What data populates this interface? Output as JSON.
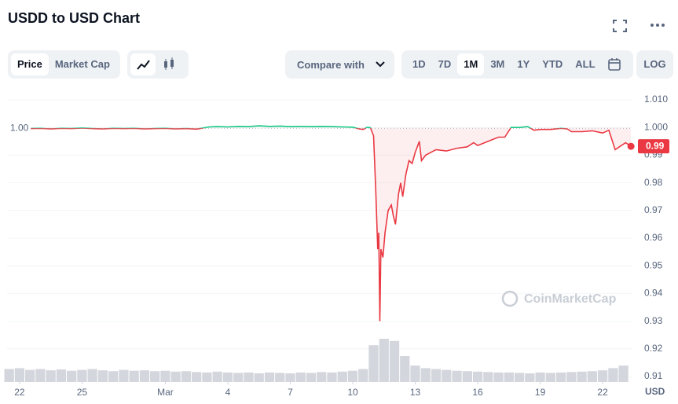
{
  "header": {
    "title": "USDD to USD Chart",
    "tabs": [
      "Price",
      "Market Cap"
    ],
    "compare": "Compare with",
    "ranges": [
      "1D",
      "7D",
      "1M",
      "3M",
      "1Y",
      "YTD",
      "ALL"
    ],
    "log": "LOG"
  },
  "chart_data": {
    "type": "line",
    "watermark": "CoinMarketCap",
    "y_unit": "USD",
    "xlim": [
      -0.6,
      29.43
    ],
    "xticks": [
      {
        "value": 0,
        "label": "22"
      },
      {
        "value": 3,
        "label": "25"
      },
      {
        "value": 7,
        "label": "Mar"
      },
      {
        "value": 10,
        "label": "4"
      },
      {
        "value": 13,
        "label": "7"
      },
      {
        "value": 16,
        "label": "10"
      },
      {
        "value": 19,
        "label": "13"
      },
      {
        "value": 22,
        "label": "16"
      },
      {
        "value": 25,
        "label": "19"
      },
      {
        "value": 28,
        "label": "22"
      }
    ],
    "ylim": [
      0.91,
      1.01
    ],
    "yticks": [
      {
        "value": 1.01,
        "label": "1.010"
      },
      {
        "value": 1.0,
        "label": "1.000"
      },
      0.99,
      0.98,
      0.97,
      0.96,
      0.95,
      0.94,
      0.93,
      0.92,
      0.91
    ],
    "reference": {
      "value": 0.9997,
      "label": "1.00"
    },
    "grid": true,
    "up_color": "#16c784",
    "down_color": "#ea3943",
    "series": [
      {
        "x": [
          -0.55,
          0,
          0.5,
          1,
          1.5,
          2,
          2.5,
          3,
          3.5,
          4,
          4.5,
          5,
          5.5,
          6,
          6.5,
          7,
          7.5,
          8,
          8.5,
          9.1,
          9.5,
          10,
          10.5,
          11,
          11.5,
          12,
          12.5,
          13,
          13.5,
          14,
          14.5,
          15,
          15.5,
          16,
          16.3,
          16.5,
          16.7,
          16.85,
          17.0,
          17.1,
          17.2,
          17.25,
          17.3,
          17.35,
          17.45,
          17.55,
          17.7,
          17.85,
          17.95,
          18.05,
          18.2,
          18.3,
          18.4,
          18.55,
          18.7,
          18.85,
          19.0,
          19.2,
          19.3,
          19.5,
          20,
          20.5,
          21,
          21.5,
          21.8,
          22,
          22.5,
          23,
          23.3,
          23.6,
          24,
          24.4,
          24.7,
          25,
          25.5,
          26,
          26.3,
          26.5,
          27,
          27.5,
          28,
          28.3,
          28.6,
          28.9,
          29.1,
          29.36
        ],
        "values": [
          0.9997,
          0.9998,
          0.9996,
          0.9997,
          0.9995,
          0.9997,
          0.9996,
          0.9998,
          0.9996,
          0.9995,
          0.9997,
          0.9996,
          0.9997,
          0.9995,
          0.9996,
          0.9997,
          0.9995,
          0.9996,
          0.9994,
          1.0002,
          1.0003,
          1.0002,
          1.0004,
          1.0003,
          1.0006,
          1.0004,
          1.0005,
          1.0003,
          1.0004,
          1.0003,
          1.0004,
          1.0003,
          1.0002,
          1.0001,
          0.9995,
          0.9993,
          1.0001,
          0.9999,
          0.997,
          0.978,
          0.956,
          0.962,
          0.93,
          0.956,
          0.953,
          0.962,
          0.97,
          0.972,
          0.968,
          0.965,
          0.976,
          0.98,
          0.975,
          0.983,
          0.988,
          0.987,
          0.991,
          0.995,
          0.988,
          0.99,
          0.992,
          0.9915,
          0.9925,
          0.993,
          0.9945,
          0.9935,
          0.995,
          0.9965,
          0.9965,
          1.0,
          1.0,
          1.0003,
          0.999,
          0.9993,
          0.9993,
          0.9997,
          0.9995,
          0.9985,
          0.9985,
          0.9988,
          0.998,
          0.999,
          0.992,
          0.9935,
          0.9945,
          0.9932
        ],
        "last_value_label": "0.99"
      }
    ],
    "volume": {
      "color": "#d3d6dc",
      "x": [
        -0.5,
        0,
        0.5,
        1,
        1.5,
        2,
        2.5,
        3,
        3.5,
        4,
        4.5,
        5,
        5.5,
        6,
        6.5,
        7,
        7.5,
        8,
        8.5,
        9,
        9.5,
        10,
        10.5,
        11,
        11.5,
        12,
        12.5,
        13,
        13.5,
        14,
        14.5,
        15,
        15.5,
        16,
        16.5,
        17,
        17.5,
        18,
        18.5,
        19,
        19.5,
        20,
        20.5,
        21,
        21.5,
        22,
        22.5,
        23,
        23.5,
        24,
        24.5,
        25,
        25.5,
        26,
        26.5,
        27,
        27.5,
        28,
        28.5,
        29
      ],
      "values": [
        30,
        32,
        28,
        30,
        27,
        29,
        26,
        28,
        30,
        27,
        25,
        28,
        26,
        27,
        25,
        26,
        24,
        25,
        23,
        22,
        24,
        22,
        21,
        22,
        20,
        22,
        21,
        20,
        22,
        21,
        23,
        22,
        24,
        26,
        30,
        85,
        100,
        95,
        60,
        38,
        32,
        30,
        28,
        26,
        25,
        24,
        23,
        22,
        22,
        21,
        20,
        22,
        21,
        22,
        23,
        24,
        25,
        27,
        32,
        38
      ]
    }
  }
}
